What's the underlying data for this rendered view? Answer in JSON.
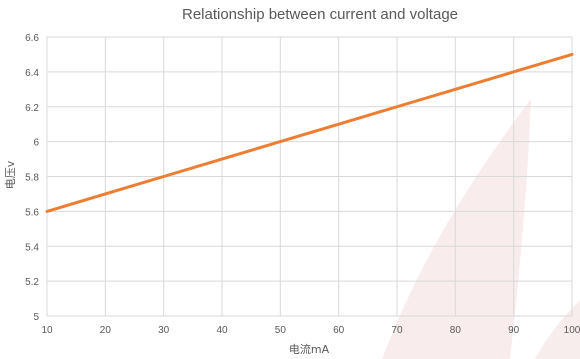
{
  "chart_data": {
    "type": "line",
    "title": "Relationship between current and voltage",
    "xlabel": "电流mA",
    "ylabel": "电压v",
    "x_ticks": [
      10,
      20,
      30,
      40,
      50,
      60,
      70,
      80,
      90,
      100
    ],
    "y_ticks": [
      5,
      5.2,
      5.4,
      5.6,
      5.8,
      6,
      6.2,
      6.4,
      6.6
    ],
    "xlim": [
      10,
      100
    ],
    "ylim": [
      5,
      6.6
    ],
    "grid": true,
    "legend": "none",
    "series": [
      {
        "x": [
          10,
          20,
          30,
          40,
          50,
          60,
          70,
          80,
          90,
          100
        ],
        "values": [
          5.6,
          5.7,
          5.8,
          5.9,
          6.0,
          6.1,
          6.2,
          6.3,
          6.4,
          6.5
        ],
        "color": "#ED7D31"
      }
    ],
    "colors": {
      "grid": "#d9d9d9",
      "text": "#595959",
      "watermark": "#f2dcdc"
    }
  }
}
